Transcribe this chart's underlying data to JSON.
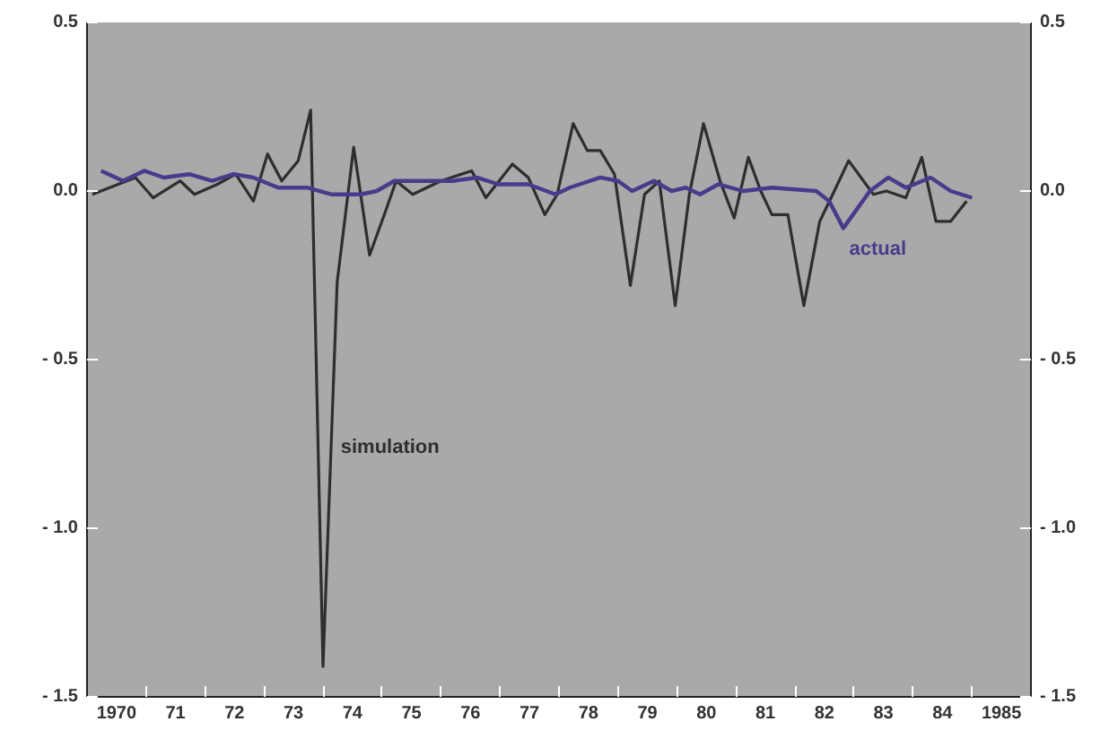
{
  "chart_data": {
    "type": "line",
    "xlim": [
      1969.5,
      1985.5
    ],
    "ylim": [
      -1.5,
      0.5
    ],
    "y2lim": [
      -1.5,
      0.5
    ],
    "xticks": [
      {
        "value": 1970,
        "label": "1970"
      },
      {
        "value": 1971,
        "label": "71"
      },
      {
        "value": 1972,
        "label": "72"
      },
      {
        "value": 1973,
        "label": "73"
      },
      {
        "value": 1974,
        "label": "74"
      },
      {
        "value": 1975,
        "label": "75"
      },
      {
        "value": 1976,
        "label": "76"
      },
      {
        "value": 1977,
        "label": "77"
      },
      {
        "value": 1978,
        "label": "78"
      },
      {
        "value": 1979,
        "label": "79"
      },
      {
        "value": 1980,
        "label": "80"
      },
      {
        "value": 1981,
        "label": "81"
      },
      {
        "value": 1982,
        "label": "82"
      },
      {
        "value": 1983,
        "label": "83"
      },
      {
        "value": 1984,
        "label": "84"
      },
      {
        "value": 1985,
        "label": "1985"
      },
      {
        "value": 1969.5,
        "label": null
      },
      {
        "value": 1970.5,
        "label": null
      },
      {
        "value": 1971.5,
        "label": null
      },
      {
        "value": 1972.5,
        "label": null
      },
      {
        "value": 1973.5,
        "label": null
      },
      {
        "value": 1974.5,
        "label": null
      },
      {
        "value": 1975.5,
        "label": null
      },
      {
        "value": 1976.5,
        "label": null
      },
      {
        "value": 1977.5,
        "label": null
      },
      {
        "value": 1978.5,
        "label": null
      },
      {
        "value": 1979.5,
        "label": null
      },
      {
        "value": 1980.5,
        "label": null
      },
      {
        "value": 1981.5,
        "label": null
      },
      {
        "value": 1982.5,
        "label": null
      },
      {
        "value": 1983.5,
        "label": null
      },
      {
        "value": 1984.5,
        "label": null
      },
      {
        "value": 1985.5,
        "label": null
      }
    ],
    "yticks": [
      {
        "value": -1.5,
        "label": "- 1.5"
      },
      {
        "value": -1.0,
        "label": "- 1.0"
      },
      {
        "value": -0.5,
        "label": "- 0.5"
      },
      {
        "value": 0.0,
        "label": "0.0"
      },
      {
        "value": 0.5,
        "label": "0.5"
      }
    ],
    "y2ticks": [
      {
        "value": -1.5,
        "label": "- 1.5"
      },
      {
        "value": -1.0,
        "label": "- 1.0"
      },
      {
        "value": -0.5,
        "label": "- 0.5"
      },
      {
        "value": 0.0,
        "label": "0.0"
      },
      {
        "value": 0.5,
        "label": "0.5"
      }
    ],
    "grid": false,
    "marker": "none",
    "line_style": "solid",
    "series": [
      {
        "name": "simulation",
        "color": "#2e2e2e",
        "x": [
          1969.59,
          1970.32,
          1970.62,
          1971.08,
          1971.32,
          1971.71,
          1972.02,
          1972.32,
          1972.56,
          1972.8,
          1973.08,
          1973.29,
          1973.5,
          1973.74,
          1974.02,
          1974.29,
          1974.56,
          1974.74,
          1975.02,
          1975.26,
          1975.5,
          1976.02,
          1976.26,
          1976.71,
          1976.98,
          1977.26,
          1977.47,
          1977.74,
          1977.98,
          1978.2,
          1978.44,
          1978.71,
          1978.95,
          1979.2,
          1979.47,
          1979.71,
          1979.95,
          1980.23,
          1980.47,
          1980.71,
          1980.92,
          1981.11,
          1981.38,
          1981.65,
          1981.92,
          1982.14,
          1982.41,
          1982.62,
          1982.83,
          1983.05,
          1983.38,
          1983.65,
          1983.89,
          1984.14,
          1984.41
        ],
        "values": [
          -0.01,
          0.04,
          -0.02,
          0.03,
          -0.01,
          0.02,
          0.05,
          -0.03,
          0.11,
          0.03,
          0.09,
          0.24,
          -1.41,
          -0.27,
          0.13,
          -0.19,
          -0.06,
          0.03,
          -0.01,
          0.01,
          0.03,
          0.06,
          -0.02,
          0.08,
          0.04,
          -0.07,
          -0.01,
          0.2,
          0.12,
          0.12,
          0.05,
          -0.28,
          -0.01,
          0.03,
          -0.34,
          -0.01,
          0.2,
          0.03,
          -0.08,
          0.1,
          0.0,
          -0.07,
          -0.07,
          -0.34,
          -0.09,
          -0.01,
          0.09,
          0.04,
          -0.01,
          0.0,
          -0.02,
          0.1,
          -0.09,
          -0.09,
          -0.03
        ]
      },
      {
        "name": "actual",
        "color": "#4b3a8c",
        "x": [
          1969.74,
          1970.11,
          1970.47,
          1970.8,
          1971.23,
          1971.62,
          1971.98,
          1972.32,
          1972.74,
          1973.23,
          1973.65,
          1974.14,
          1974.41,
          1974.71,
          1975.17,
          1975.71,
          1976.11,
          1976.47,
          1976.98,
          1977.44,
          1977.68,
          1978.2,
          1978.5,
          1978.74,
          1979.11,
          1979.41,
          1979.65,
          1979.89,
          1980.2,
          1980.62,
          1981.11,
          1981.86,
          1982.08,
          1982.32,
          1982.77,
          1983.08,
          1983.38,
          1983.8,
          1984.14,
          1984.5
        ],
        "values": [
          0.06,
          0.03,
          0.06,
          0.04,
          0.05,
          0.03,
          0.05,
          0.04,
          0.01,
          0.01,
          -0.01,
          -0.01,
          0.0,
          0.03,
          0.03,
          0.03,
          0.04,
          0.02,
          0.02,
          -0.01,
          0.01,
          0.04,
          0.03,
          0.0,
          0.03,
          0.0,
          0.01,
          -0.01,
          0.02,
          0.0,
          0.01,
          0.0,
          -0.03,
          -0.11,
          0.0,
          0.04,
          0.01,
          0.04,
          0.0,
          -0.02
        ]
      }
    ]
  }
}
